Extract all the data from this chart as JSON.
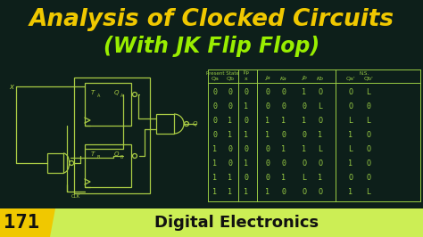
{
  "bg_color": "#0d1f1a",
  "title_line1": "Analysis of Clocked Circuits",
  "title_line2": "(With JK Flip Flop)",
  "title_color1": "#f0c800",
  "title_color2": "#99ee00",
  "title_fontsize": 19,
  "title2_fontsize": 17,
  "badge_number": "171",
  "badge_bg": "#f0c800",
  "badge_text_color": "#111111",
  "subtitle": "Digital Electronics",
  "subtitle_bg": "#ccee55",
  "subtitle_text_color": "#111111",
  "subtitle_fontsize": 13,
  "circuit_color": "#aacc44",
  "table_color": "#99cc44",
  "present_state_label": "Present State",
  "input_label": "I/p",
  "ns_label": "N.S.",
  "table_data": [
    [
      "0",
      "0",
      "0",
      "0",
      "0",
      "1",
      "O",
      "O",
      "L"
    ],
    [
      "0",
      "0",
      "1",
      "0",
      "0",
      "0",
      "L",
      "O",
      "0"
    ],
    [
      "0",
      "1",
      "0",
      "1",
      "1",
      "1",
      "O",
      "L",
      "L"
    ],
    [
      "0",
      "1",
      "1",
      "1",
      "0",
      "0",
      "1",
      "1",
      "O"
    ],
    [
      "1",
      "0",
      "0",
      "0",
      "1",
      "1",
      "L",
      "L",
      "O"
    ],
    [
      "1",
      "0",
      "1",
      "0",
      "0",
      "O",
      "O",
      "1",
      "O"
    ],
    [
      "1",
      "1",
      "0",
      "0",
      "1",
      "L",
      "1",
      "O",
      "O"
    ],
    [
      "1",
      "1",
      "1",
      "1",
      "0",
      "O",
      "O",
      "1",
      "L"
    ]
  ]
}
